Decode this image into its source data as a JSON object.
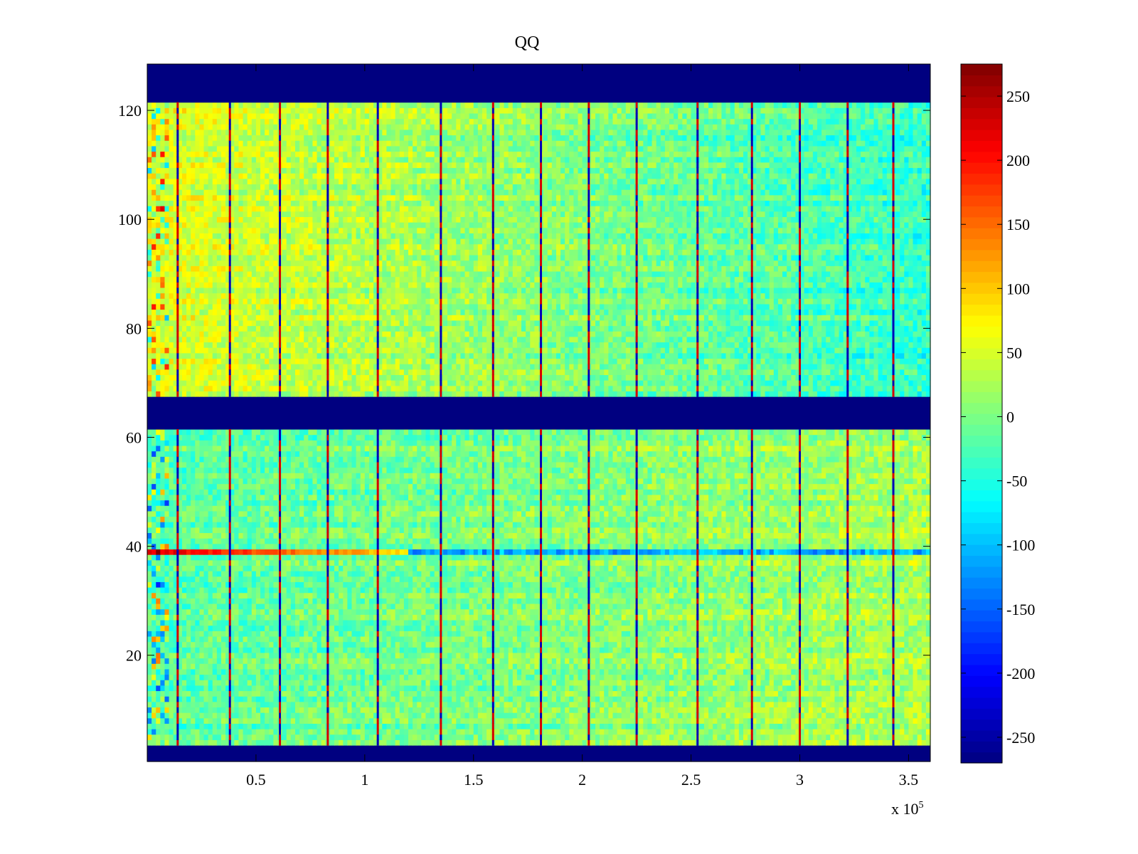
{
  "chart_data": {
    "type": "heatmap",
    "title": "QQ",
    "xlabel": "",
    "ylabel": "",
    "x_multiplier_label": "x 10",
    "x_multiplier_exponent": "5",
    "xlim": [
      0,
      3.6
    ],
    "ylim": [
      0.5,
      128.5
    ],
    "x_ticks": [
      0.5,
      1,
      1.5,
      2,
      2.5,
      3,
      3.5
    ],
    "x_tick_labels": [
      "0.5",
      "1",
      "1.5",
      "2",
      "2.5",
      "3",
      "3.5"
    ],
    "y_ticks": [
      20,
      40,
      60,
      80,
      100,
      120
    ],
    "y_tick_labels": [
      "20",
      "40",
      "60",
      "80",
      "100",
      "120"
    ],
    "colormap": "jet",
    "clim": [
      -270,
      275
    ],
    "colorbar_ticks": [
      250,
      200,
      150,
      100,
      50,
      0,
      -50,
      -100,
      -150,
      -200,
      -250
    ],
    "colorbar_tick_labels": [
      "250",
      "200",
      "150",
      "100",
      "50",
      "0",
      "-50",
      "-100",
      "-150",
      "-200",
      "-250"
    ],
    "masked_row_bands": [
      [
        0.5,
        3.5
      ],
      [
        61.5,
        67.5
      ],
      [
        121.5,
        128.5
      ]
    ],
    "masked_value": -270,
    "vertical_stripe_x": [
      0.14,
      0.38,
      0.61,
      0.83,
      1.06,
      1.35,
      1.59,
      1.81,
      2.03,
      2.25,
      2.53,
      2.78,
      3.0,
      3.22,
      3.43
    ],
    "strong_row": 39,
    "region_means": {
      "upper_block_x_0": 55,
      "upper_block_x_3_6": -40,
      "lower_block_x_0": -20,
      "lower_block_x_3_6": 25
    }
  }
}
